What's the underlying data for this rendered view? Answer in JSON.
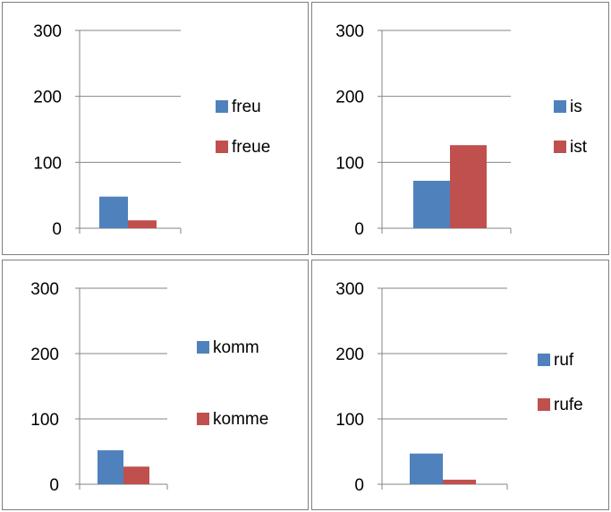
{
  "colors": {
    "series_a": "#4f81bd",
    "series_b": "#c0504d",
    "gridline": "#868686",
    "border": "#7f7f7f"
  },
  "chart_data": [
    {
      "type": "bar",
      "categories": [
        ""
      ],
      "series": [
        {
          "name": "freu",
          "values": [
            48
          ]
        },
        {
          "name": "freue",
          "values": [
            12
          ]
        }
      ],
      "title": "",
      "xlabel": "",
      "ylabel": "",
      "ylim": [
        0,
        300
      ],
      "yticks": [
        "0",
        "100",
        "200",
        "300"
      ],
      "grid": true,
      "legend": "right"
    },
    {
      "type": "bar",
      "categories": [
        ""
      ],
      "series": [
        {
          "name": "is",
          "values": [
            72
          ]
        },
        {
          "name": "ist",
          "values": [
            126
          ]
        }
      ],
      "title": "",
      "xlabel": "",
      "ylabel": "",
      "ylim": [
        0,
        300
      ],
      "yticks": [
        "0",
        "100",
        "200",
        "300"
      ],
      "grid": true,
      "legend": "right"
    },
    {
      "type": "bar",
      "categories": [
        ""
      ],
      "series": [
        {
          "name": "komm",
          "values": [
            52
          ]
        },
        {
          "name": "komme",
          "values": [
            27
          ]
        }
      ],
      "title": "",
      "xlabel": "",
      "ylabel": "",
      "ylim": [
        0,
        300
      ],
      "yticks": [
        "0",
        "100",
        "200",
        "300"
      ],
      "grid": true,
      "legend": "right"
    },
    {
      "type": "bar",
      "categories": [
        ""
      ],
      "series": [
        {
          "name": "ruf",
          "values": [
            47
          ]
        },
        {
          "name": "rufe",
          "values": [
            7
          ]
        }
      ],
      "title": "",
      "xlabel": "",
      "ylabel": "",
      "ylim": [
        0,
        300
      ],
      "yticks": [
        "0",
        "100",
        "200",
        "300"
      ],
      "grid": true,
      "legend": "right"
    }
  ]
}
